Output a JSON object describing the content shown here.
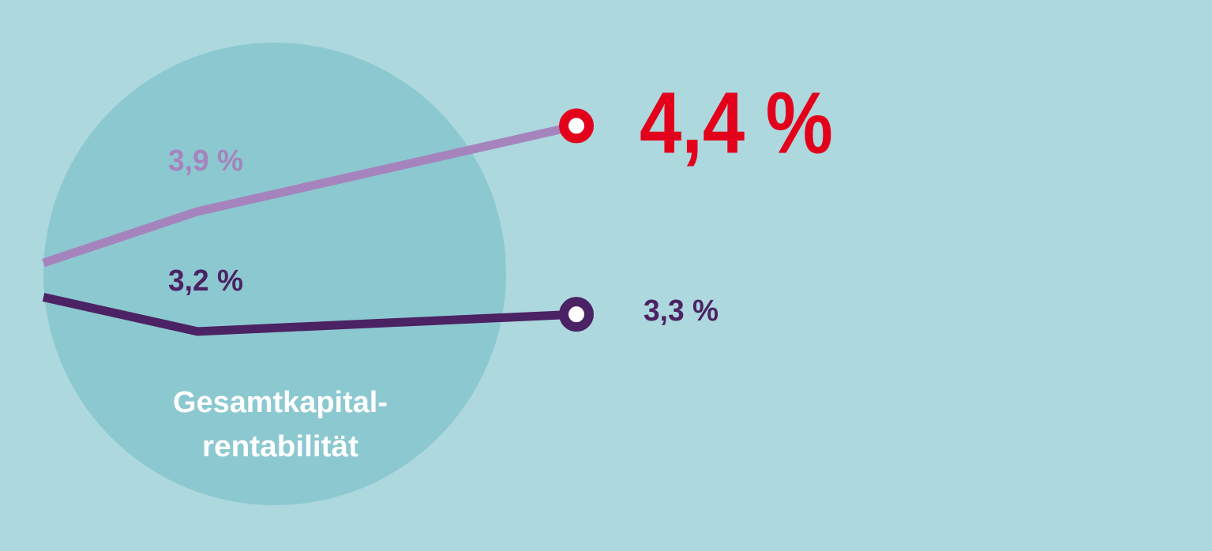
{
  "chart_data": {
    "type": "line",
    "title_lines": [
      "Gesamtkapital-",
      "rentabilität"
    ],
    "ylim": [
      2.9,
      4.6
    ],
    "series": [
      {
        "color": "#a584bd",
        "highlight_color": "#e3001b",
        "values": [
          3.6,
          3.9,
          4.4
        ],
        "value_labels": [
          null,
          "3,9 %",
          "4,4 %"
        ]
      },
      {
        "color": "#4b2263",
        "highlight_color": "#4b2263",
        "values": [
          3.4,
          3.2,
          3.3
        ],
        "value_labels": [
          null,
          "3,2 %",
          "3,3 %"
        ]
      }
    ]
  }
}
